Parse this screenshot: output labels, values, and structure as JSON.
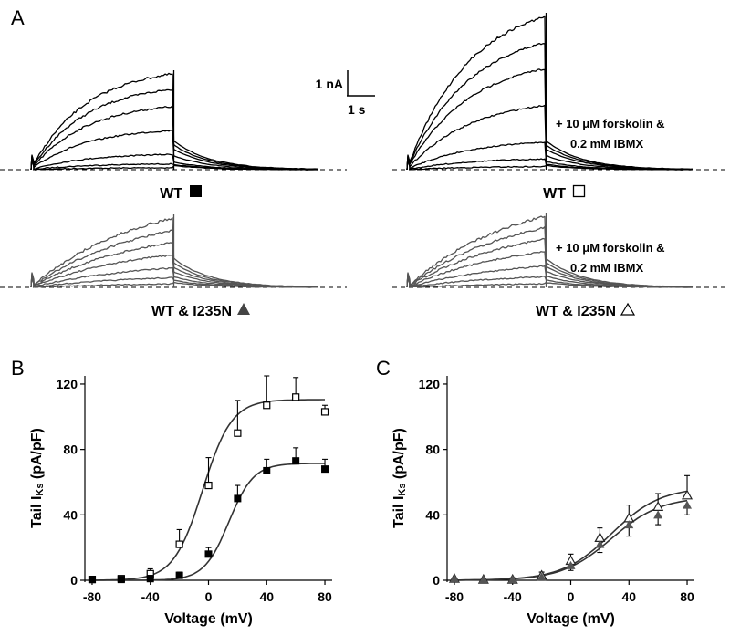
{
  "figure": {
    "panel_labels": {
      "a": "A",
      "b": "B",
      "c": "C"
    },
    "scale_bar": {
      "current": "1 nA",
      "time": "1 s"
    },
    "traces": [
      {
        "id": "wt",
        "label": "WT",
        "symbol": "filled-square",
        "treatment": null,
        "relative_amplitudes": [
          0.02,
          0.06,
          0.16,
          0.41,
          0.66,
          0.84,
          1.0
        ]
      },
      {
        "id": "wt-forskolin",
        "label": "WT",
        "symbol": "open-square",
        "treatment": [
          "+ 10 μM forskolin &",
          "0.2 mM IBMX"
        ],
        "relative_amplitudes": [
          0.02,
          0.07,
          0.18,
          0.42,
          0.66,
          0.83,
          1.0
        ]
      },
      {
        "id": "mut",
        "label": "WT & I235N",
        "symbol": "filled-triangle",
        "treatment": null,
        "relative_amplitudes": [
          0.05,
          0.14,
          0.28,
          0.47,
          0.65,
          0.82,
          1.0
        ]
      },
      {
        "id": "mut-forskolin",
        "label": "WT & I235N",
        "symbol": "open-triangle",
        "treatment": [
          "+ 10 μM forskolin &",
          "0.2 mM IBMX"
        ],
        "relative_amplitudes": [
          0.05,
          0.15,
          0.3,
          0.5,
          0.68,
          0.84,
          1.0
        ]
      }
    ]
  },
  "chart_data": [
    {
      "panel": "B",
      "type": "scatter",
      "xlabel": "Voltage (mV)",
      "ylabel": "Tail I",
      "ylabel_sub": "Ks",
      "ylabel_unit": "(pA/pF)",
      "xlim": [
        -85,
        85
      ],
      "ylim": [
        0,
        125
      ],
      "xticks": [
        -80,
        -40,
        0,
        40,
        80
      ],
      "yticks": [
        0,
        40,
        80,
        120
      ],
      "x": [
        -80,
        -60,
        -40,
        -20,
        0,
        20,
        40,
        60,
        80
      ],
      "series": [
        {
          "name": "WT + forskolin & IBMX",
          "marker": "open-square",
          "values": [
            0.5,
            1,
            4,
            22,
            58,
            90,
            107,
            112,
            103
          ],
          "errors": [
            0.5,
            1,
            3,
            9,
            17,
            20,
            18,
            12,
            4
          ],
          "fit": {
            "vhalf": -4,
            "k": 10,
            "max": 110.5
          }
        },
        {
          "name": "WT",
          "marker": "filled-square",
          "values": [
            0.5,
            0.5,
            1,
            3,
            16,
            50,
            67,
            73,
            68
          ],
          "errors": [
            0.5,
            0.5,
            2,
            2,
            4,
            8,
            7,
            8,
            6
          ],
          "fit": {
            "vhalf": 14,
            "k": 8.5,
            "max": 71.5
          }
        }
      ]
    },
    {
      "panel": "C",
      "type": "scatter",
      "xlabel": "Voltage (mV)",
      "ylabel": "Tail I",
      "ylabel_sub": "Ks",
      "ylabel_unit": "(pA/pF)",
      "xlim": [
        -85,
        85
      ],
      "ylim": [
        0,
        125
      ],
      "xticks": [
        -80,
        -40,
        0,
        40,
        80
      ],
      "yticks": [
        0,
        40,
        80,
        120
      ],
      "x": [
        -80,
        -60,
        -40,
        -20,
        0,
        20,
        40,
        60,
        80
      ],
      "series": [
        {
          "name": "WT & I235N + forskolin & IBMX",
          "marker": "open-triangle",
          "values": [
            1,
            0.5,
            0.5,
            3,
            12,
            26,
            38,
            45,
            52
          ],
          "errors": [
            0.5,
            0.5,
            1,
            2,
            4,
            6,
            8,
            8,
            12
          ],
          "fit": {
            "vhalf": 28,
            "k": 17,
            "max": 57
          }
        },
        {
          "name": "WT & I235N",
          "marker": "filled-triangle",
          "values": [
            1,
            0.5,
            0.5,
            2,
            9,
            22,
            34,
            40,
            46
          ],
          "errors": [
            0.5,
            0.5,
            1,
            2,
            3,
            5,
            7,
            6,
            6
          ],
          "fit": {
            "vhalf": 28,
            "k": 17,
            "max": 51
          }
        }
      ]
    }
  ]
}
